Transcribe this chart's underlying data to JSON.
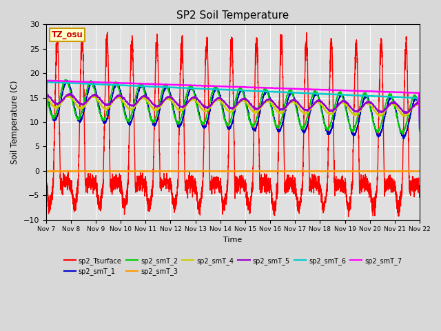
{
  "title": "SP2 Soil Temperature",
  "ylabel": "Soil Temperature (C)",
  "xlabel": "Time",
  "tz_label": "TZ_osu",
  "ylim": [
    -10,
    30
  ],
  "yticks": [
    -10,
    -5,
    0,
    5,
    10,
    15,
    20,
    25,
    30
  ],
  "fig_bg": "#d8d8d8",
  "plot_bg": "#e0e0e0",
  "series": [
    {
      "label": "sp2_Tsurface",
      "color": "#ff0000",
      "lw": 1.0
    },
    {
      "label": "sp2_smT_1",
      "color": "#0000cc",
      "lw": 1.0
    },
    {
      "label": "sp2_smT_2",
      "color": "#00cc00",
      "lw": 1.0
    },
    {
      "label": "sp2_smT_3",
      "color": "#ff9900",
      "lw": 1.5
    },
    {
      "label": "sp2_smT_4",
      "color": "#cccc00",
      "lw": 1.0
    },
    {
      "label": "sp2_smT_5",
      "color": "#9900cc",
      "lw": 1.0
    },
    {
      "label": "sp2_smT_6",
      "color": "#00cccc",
      "lw": 1.8
    },
    {
      "label": "sp2_smT_7",
      "color": "#ff00ff",
      "lw": 1.8
    }
  ],
  "x_tick_labels": [
    "Nov 7",
    "Nov 8",
    "Nov 9",
    "Nov 10",
    "Nov 11",
    "Nov 12",
    "Nov 13",
    "Nov 14",
    "Nov 15",
    "Nov 16",
    "Nov 17",
    "Nov 18",
    "Nov 19",
    "Nov 20",
    "Nov 21",
    "Nov 22"
  ],
  "n_days": 16
}
